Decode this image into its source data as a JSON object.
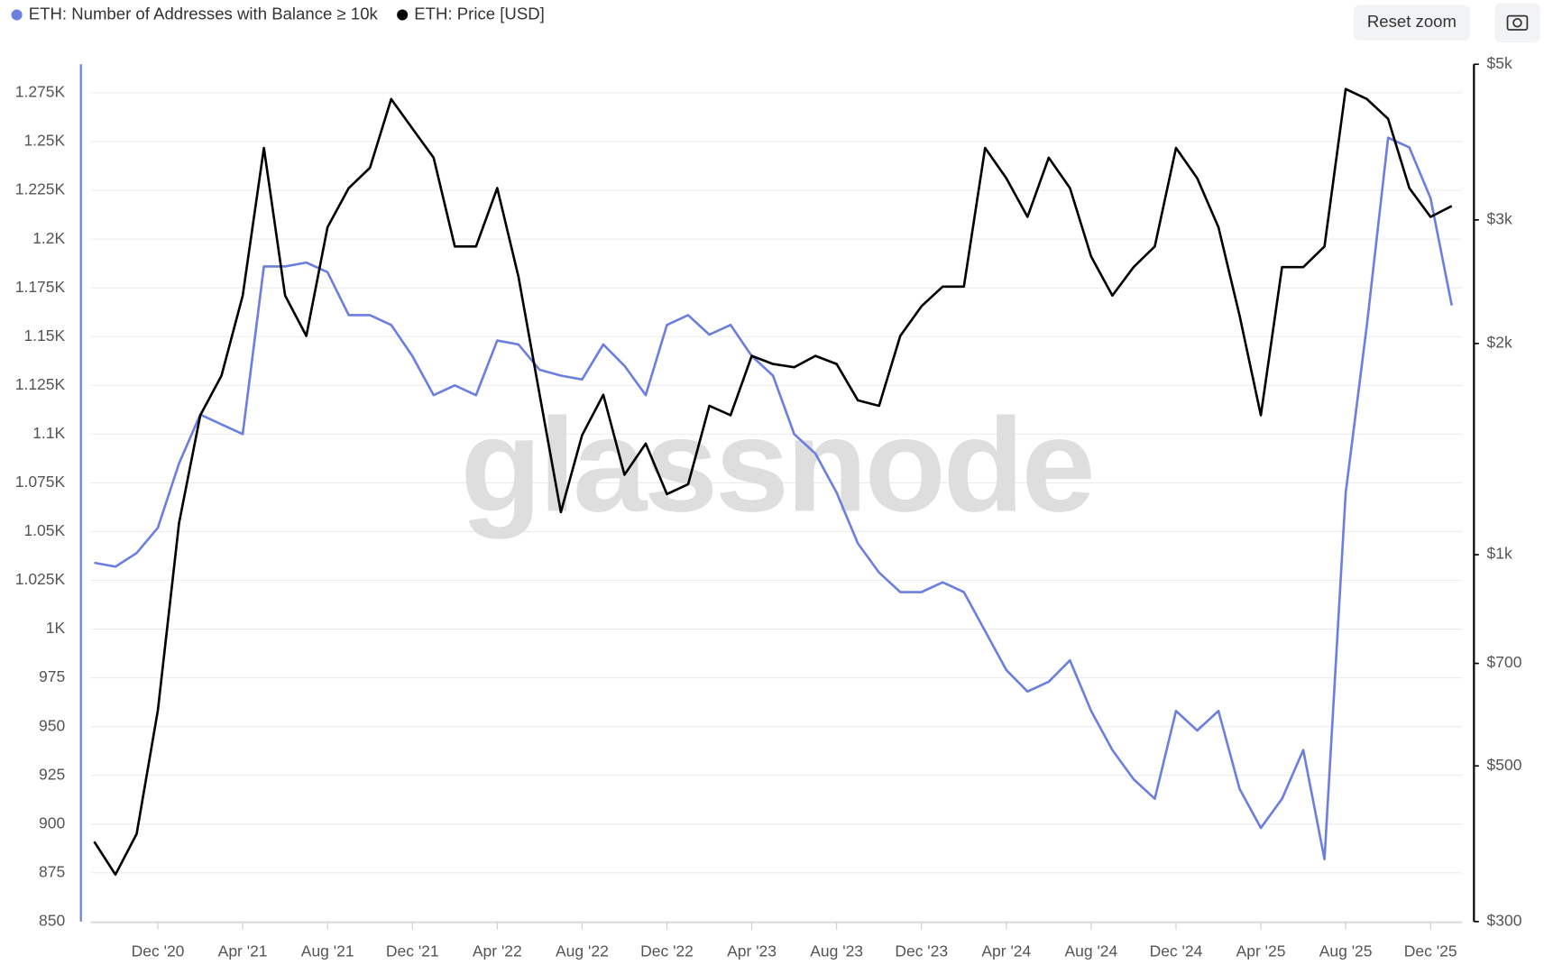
{
  "chart_data": {
    "type": "line",
    "watermark": "glassnode",
    "reset_zoom": "Reset zoom",
    "x": [
      "2020-09",
      "2020-10",
      "2020-11",
      "2020-12",
      "2021-01",
      "2021-02",
      "2021-03",
      "2021-04",
      "2021-05",
      "2021-06",
      "2021-07",
      "2021-08",
      "2021-09",
      "2021-10",
      "2021-11",
      "2021-12",
      "2022-01",
      "2022-02",
      "2022-03",
      "2022-04",
      "2022-05",
      "2022-06",
      "2022-07",
      "2022-08",
      "2022-09",
      "2022-10",
      "2022-11",
      "2022-12",
      "2023-01",
      "2023-02",
      "2023-03",
      "2023-04",
      "2023-05",
      "2023-06",
      "2023-07",
      "2023-08",
      "2023-09",
      "2023-10",
      "2023-11",
      "2023-12",
      "2024-01",
      "2024-02",
      "2024-03",
      "2024-04",
      "2024-05",
      "2024-06",
      "2024-07",
      "2024-08",
      "2024-09",
      "2024-10",
      "2024-11",
      "2024-12",
      "2025-01",
      "2025-02",
      "2025-03",
      "2025-04",
      "2025-05",
      "2025-06",
      "2025-07",
      "2025-08",
      "2025-09",
      "2025-10",
      "2025-11",
      "2025-12",
      "2026-01"
    ],
    "xlim": [
      "2020-09",
      "2026-02"
    ],
    "xticks": [
      {
        "value": "2020-12",
        "label": "Dec '20"
      },
      {
        "value": "2021-04",
        "label": "Apr '21"
      },
      {
        "value": "2021-08",
        "label": "Aug '21"
      },
      {
        "value": "2021-12",
        "label": "Dec '21"
      },
      {
        "value": "2022-04",
        "label": "Apr '22"
      },
      {
        "value": "2022-08",
        "label": "Aug '22"
      },
      {
        "value": "2022-12",
        "label": "Dec '22"
      },
      {
        "value": "2023-04",
        "label": "Apr '23"
      },
      {
        "value": "2023-08",
        "label": "Aug '23"
      },
      {
        "value": "2023-12",
        "label": "Dec '23"
      },
      {
        "value": "2024-04",
        "label": "Apr '24"
      },
      {
        "value": "2024-08",
        "label": "Aug '24"
      },
      {
        "value": "2024-12",
        "label": "Dec '24"
      },
      {
        "value": "2025-04",
        "label": "Apr '25"
      },
      {
        "value": "2025-08",
        "label": "Aug '25"
      },
      {
        "value": "2025-12",
        "label": "Dec '25"
      }
    ],
    "ylim": [
      850,
      1275
    ],
    "yticks": [
      850,
      875,
      900,
      925,
      950,
      975,
      {
        "value": 1000,
        "label": "1K"
      },
      {
        "value": 1025,
        "label": "1.025K"
      },
      {
        "value": 1050,
        "label": "1.05K"
      },
      {
        "value": 1075,
        "label": "1.075K"
      },
      {
        "value": 1100,
        "label": "1.1K"
      },
      {
        "value": 1125,
        "label": "1.125K"
      },
      {
        "value": 1150,
        "label": "1.15K"
      },
      {
        "value": 1175,
        "label": "1.175K"
      },
      {
        "value": 1200,
        "label": "1.2K"
      },
      {
        "value": 1225,
        "label": "1.225K"
      },
      {
        "value": 1250,
        "label": "1.25K"
      },
      {
        "value": 1275,
        "label": "1.275K"
      }
    ],
    "y2lim": [
      300,
      5000
    ],
    "y2log": true,
    "y2ticks": [
      {
        "value": 300,
        "label": "$300"
      },
      {
        "value": 500,
        "label": "$500"
      },
      {
        "value": 700,
        "label": "$700"
      },
      {
        "value": 1000,
        "label": "$1k"
      },
      {
        "value": 2000,
        "label": "$2k"
      },
      {
        "value": 3000,
        "label": "$3k"
      },
      {
        "value": 5000,
        "label": "$5k"
      }
    ],
    "grid": true,
    "series": [
      {
        "name": "ETH: Number of Addresses with Balance ≥ 10k",
        "color": "#6b7fde",
        "axis": "y",
        "values": [
          1034,
          1032,
          1039,
          1052,
          1085,
          1110,
          1105,
          1100,
          1186,
          1186,
          1188,
          1183,
          1161,
          1161,
          1156,
          1140,
          1120,
          1125,
          1120,
          1148,
          1146,
          1133,
          1130,
          1128,
          1146,
          1135,
          1120,
          1156,
          1161,
          1151,
          1156,
          1140,
          1130,
          1100,
          1090,
          1070,
          1044,
          1029,
          1019,
          1019,
          1024,
          1019,
          999,
          979,
          968,
          973,
          984,
          958,
          938,
          923,
          913,
          958,
          948,
          958,
          918,
          898,
          913,
          938,
          882,
          1070,
          1156,
          1252,
          1247,
          1221,
          1166
        ]
      },
      {
        "name": "ETH: Price [USD]",
        "color": "#000000",
        "axis": "y2",
        "values": [
          390,
          350,
          400,
          600,
          1110,
          1580,
          1800,
          2340,
          3800,
          2340,
          2050,
          2930,
          3330,
          3560,
          4460,
          4050,
          3680,
          2750,
          2750,
          3330,
          2490,
          1690,
          1150,
          1480,
          1690,
          1300,
          1440,
          1220,
          1260,
          1630,
          1580,
          1920,
          1870,
          1850,
          1920,
          1870,
          1660,
          1630,
          2050,
          2260,
          2410,
          2410,
          3800,
          3440,
          3030,
          3680,
          3330,
          2660,
          2340,
          2570,
          2750,
          3800,
          3440,
          2930,
          2190,
          1580,
          2570,
          2570,
          2750,
          4610,
          4460,
          4180,
          3330,
          3030,
          3140
        ]
      }
    ]
  }
}
